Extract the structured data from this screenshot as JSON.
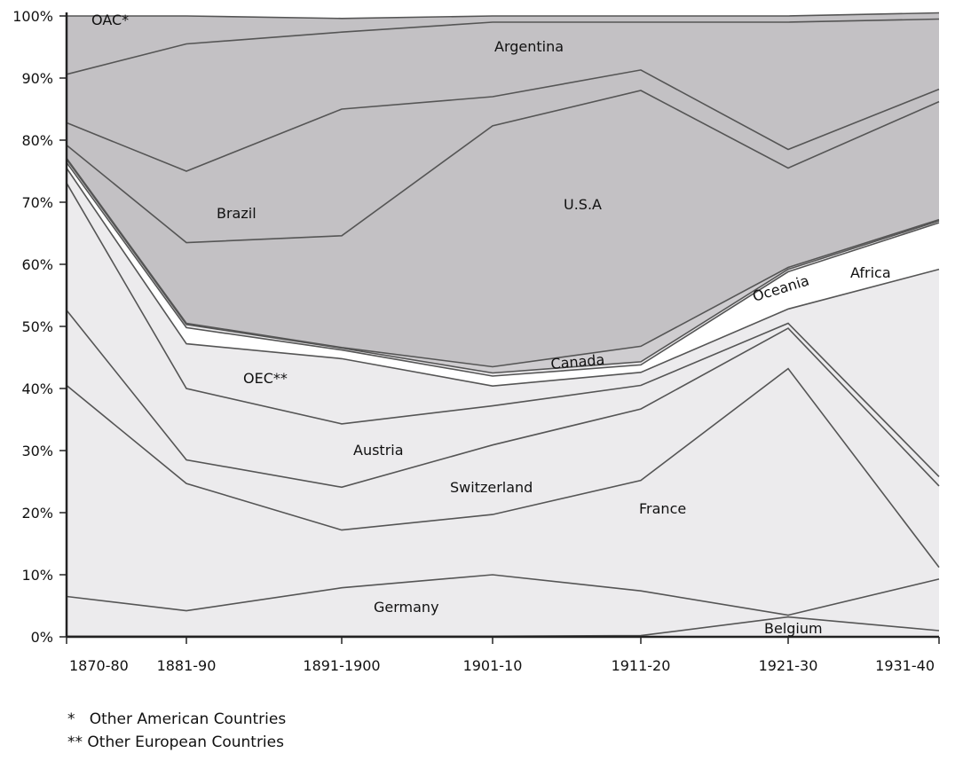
{
  "chart_data": {
    "type": "area",
    "stacked": true,
    "categories": [
      "1870-80",
      "1881-90",
      "1891-1900",
      "1901-10",
      "1911-20",
      "1921-30",
      "1931-40"
    ],
    "yticks": [
      "0%",
      "10%",
      "20%",
      "30%",
      "40%",
      "50%",
      "60%",
      "70%",
      "80%",
      "90%",
      "100%"
    ],
    "ylim": [
      0,
      100
    ],
    "series": [
      {
        "name": "Belgium",
        "values": [
          0.1,
          0.1,
          0.1,
          0.1,
          0.2,
          3.2,
          1.0
        ],
        "fill": "#ecebed"
      },
      {
        "name": "Germany",
        "values": [
          6.4,
          4.1,
          7.8,
          9.9,
          7.2,
          0.3,
          8.3
        ],
        "fill": "#ecebed"
      },
      {
        "name": "France",
        "values": [
          34,
          20.5,
          9.3,
          9.7,
          17.8,
          39.7,
          1.9
        ],
        "fill": "#ecebed"
      },
      {
        "name": "Switzerland",
        "values": [
          12.1,
          3.8,
          6.9,
          11.2,
          11.5,
          6.5,
          13.1
        ],
        "fill": "#ecebed"
      },
      {
        "name": "Austria",
        "values": [
          20.5,
          11.5,
          10.2,
          6.3,
          3.8,
          0.8,
          1.5
        ],
        "fill": "#ecebed"
      },
      {
        "name": "OEC**",
        "values": [
          2.4,
          7.2,
          10.5,
          3.2,
          2.1,
          2.3,
          33.4
        ],
        "fill": "#ecebed"
      },
      {
        "name": "Africa",
        "values": [
          0.9,
          2.6,
          1.4,
          1.6,
          1.2,
          6.0,
          7.5
        ],
        "fill": "#ffffff"
      },
      {
        "name": "Oceania",
        "values": [
          0.5,
          0.5,
          0.3,
          0.5,
          0.5,
          0.4,
          0.3
        ],
        "fill": "#ecebed"
      },
      {
        "name": "Canada",
        "values": [
          0.2,
          0.2,
          0.1,
          1.0,
          2.5,
          0.3,
          0.2
        ],
        "fill": "#cfcdd0"
      },
      {
        "name": "U.S.A",
        "values": [
          2.1,
          13.0,
          18.0,
          38.8,
          41.2,
          16.0,
          19.0
        ],
        "fill": "#c3c1c4"
      },
      {
        "name": "Brazil",
        "values": [
          3.6,
          11.5,
          20.4,
          4.7,
          3.3,
          3.0,
          2.0
        ],
        "fill": "#c3c1c4"
      },
      {
        "name": "Argentina",
        "values": [
          7.8,
          20.5,
          12.4,
          12.0,
          7.7,
          20.5,
          11.3
        ],
        "fill": "#c3c1c4"
      },
      {
        "name": "OAC*",
        "values": [
          9.4,
          4.5,
          2.2,
          1.0,
          1.0,
          1.0,
          1.0
        ],
        "fill": "#c3c1c4"
      }
    ],
    "area_labels": {
      "oac": "OAC*",
      "argentina": "Argentina",
      "brazil": "Brazil",
      "usa": "U.S.A",
      "africa": "Africa",
      "oceania": "Oceania",
      "canada": "Canada",
      "oec": "OEC**",
      "austria": "Austria",
      "switzerland": "Switzerland",
      "france": "France",
      "germany": "Germany",
      "belgium": "Belgium"
    },
    "footnotes": [
      "*   Other American Countries",
      "** Other European Countries"
    ],
    "line_color": "#555555"
  }
}
